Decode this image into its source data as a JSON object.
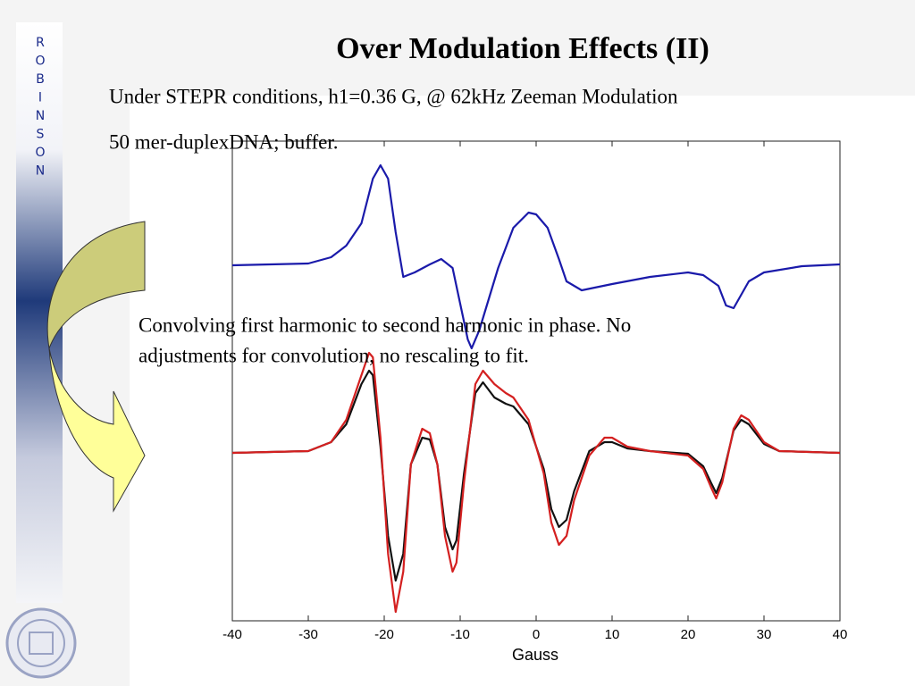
{
  "slide_title": "Over Modulation Effects (II)",
  "sidebar_letters": [
    "R",
    "O",
    "B",
    "I",
    "N",
    "S",
    "O",
    "N"
  ],
  "text_lines": [
    "Under STEPR conditions, h1=0.36 G, @ 62kHz Zeeman Modulation",
    "50 mer-duplexDNA; buffer."
  ],
  "note_lines": [
    "Convolving first harmonic to second harmonic in phase.  No",
    "adjustments for convolution, no rescaling to fit."
  ],
  "chart_data": {
    "type": "line",
    "xlabel": "Gauss",
    "xlim": [
      -40,
      40
    ],
    "xticks": [
      -40,
      -30,
      -20,
      -10,
      0,
      10,
      20,
      30,
      40
    ],
    "ylim": [
      0,
      537
    ],
    "series": [
      {
        "color": "#1a1aaa",
        "x": [
          -40,
          -30,
          -27,
          -25,
          -23,
          -21.5,
          -20.5,
          -19.5,
          -18.5,
          -17.5,
          -16,
          -14,
          -12.5,
          -11,
          -10,
          -9,
          -8.5,
          -7.5,
          -5,
          -3,
          -1,
          0,
          1.5,
          3,
          4,
          6,
          10,
          15,
          20,
          22,
          24,
          25,
          26,
          27,
          28,
          30,
          35,
          40
        ],
        "values": [
          398,
          400,
          407,
          420,
          445,
          495,
          510,
          495,
          435,
          385,
          390,
          399,
          405,
          395,
          355,
          315,
          305,
          325,
          395,
          440,
          457,
          455,
          440,
          405,
          380,
          370,
          377,
          385,
          390,
          387,
          375,
          353,
          350,
          365,
          380,
          390,
          397,
          399
        ]
      },
      {
        "color": "#111111",
        "x": [
          -40,
          -30,
          -27,
          -25,
          -23,
          -22,
          -21.5,
          -20.5,
          -19.5,
          -18.5,
          -17.5,
          -16.5,
          -15,
          -14,
          -13,
          -12,
          -11,
          -10.5,
          -9.5,
          -8,
          -7,
          -5.5,
          -4,
          -3,
          -1,
          1,
          2,
          3,
          4,
          5,
          7,
          9,
          10,
          12,
          15,
          20,
          22,
          23,
          23.7,
          24.5,
          26,
          27,
          28,
          30,
          32,
          40
        ],
        "values": [
          188,
          190,
          200,
          220,
          265,
          280,
          275,
          195,
          95,
          45,
          75,
          175,
          205,
          203,
          175,
          105,
          80,
          90,
          165,
          255,
          267,
          250,
          243,
          240,
          220,
          170,
          125,
          105,
          113,
          145,
          190,
          200,
          200,
          193,
          190,
          187,
          173,
          155,
          143,
          160,
          213,
          225,
          220,
          198,
          190,
          188
        ]
      },
      {
        "color": "#d42020",
        "x": [
          -40,
          -30,
          -27,
          -25,
          -23,
          -22,
          -21.5,
          -20.5,
          -19.5,
          -18.5,
          -17.5,
          -16.5,
          -15,
          -14,
          -13,
          -12,
          -11,
          -10.5,
          -9.5,
          -8,
          -7,
          -5.5,
          -4,
          -3,
          -1,
          1,
          2,
          3,
          4,
          5,
          7,
          9,
          10,
          12,
          15,
          20,
          22,
          23,
          23.7,
          24.5,
          26,
          27,
          28,
          30,
          32,
          40
        ],
        "values": [
          188,
          190,
          200,
          225,
          275,
          300,
          295,
          205,
          75,
          10,
          55,
          175,
          215,
          210,
          175,
          95,
          55,
          65,
          155,
          265,
          280,
          265,
          255,
          250,
          225,
          165,
          110,
          85,
          95,
          135,
          185,
          205,
          205,
          195,
          190,
          185,
          170,
          150,
          137,
          155,
          215,
          230,
          225,
          200,
          190,
          188
        ]
      }
    ]
  }
}
